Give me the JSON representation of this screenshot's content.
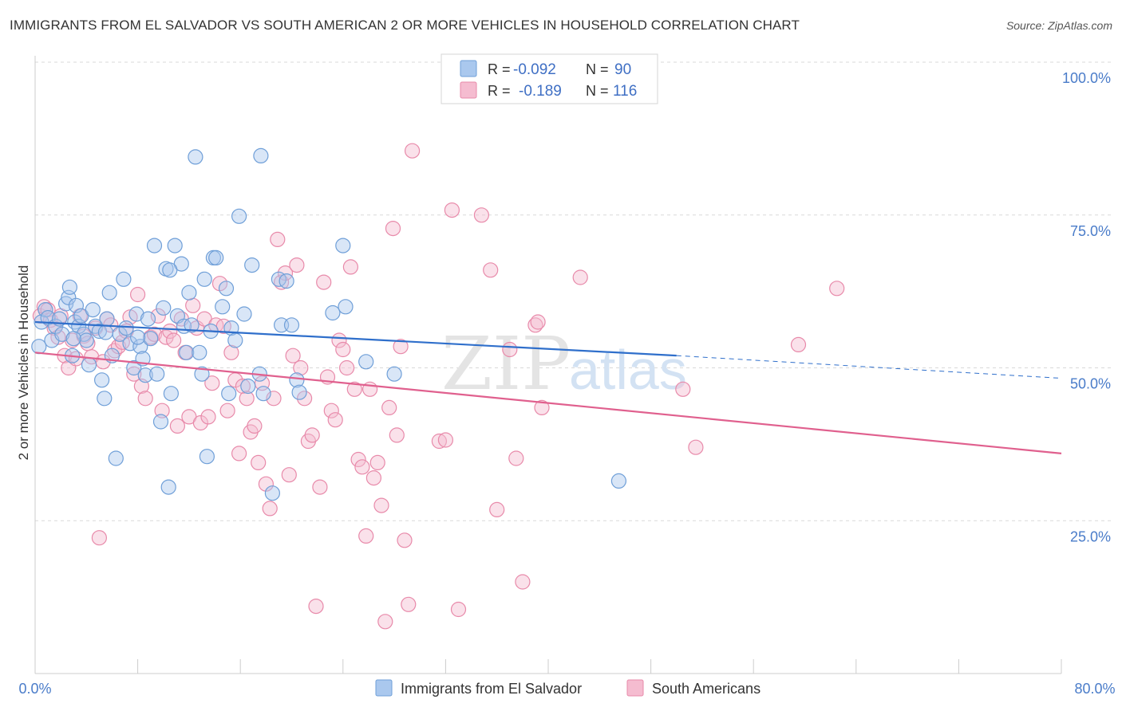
{
  "title": "IMMIGRANTS FROM EL SALVADOR VS SOUTH AMERICAN 2 OR MORE VEHICLES IN HOUSEHOLD CORRELATION CHART",
  "source": "Source: ZipAtlas.com",
  "watermark": {
    "zip": "ZIP",
    "atlas": "atlas"
  },
  "colors": {
    "blue_fill": "#aac8ee",
    "blue_stroke": "#6f9fd8",
    "blue_line": "#2f6fcb",
    "pink_fill": "#f5bcd0",
    "pink_stroke": "#e88aaa",
    "pink_line": "#e0608e",
    "tick_label": "#4a7cc9",
    "grid": "#d9d9d9"
  },
  "legend_top": {
    "rows": [
      {
        "r_label": "R =",
        "r_value": "-0.092",
        "n_label": "N =",
        "n_value": "90"
      },
      {
        "r_label": "R =",
        "r_value": "-0.189",
        "n_label": "N =",
        "n_value": "116"
      }
    ]
  },
  "chart_data": {
    "type": "scatter",
    "title": "IMMIGRANTS FROM EL SALVADOR VS SOUTH AMERICAN 2 OR MORE VEHICLES IN HOUSEHOLD CORRELATION CHART",
    "xlabel": "",
    "ylabel": "2 or more Vehicles in Household",
    "xlim": [
      0,
      80
    ],
    "ylim": [
      0,
      100
    ],
    "x_tick_labels": [
      "0.0%",
      "80.0%"
    ],
    "y_ticks": [
      25,
      50,
      75,
      100
    ],
    "y_tick_labels": [
      "25.0%",
      "50.0%",
      "75.0%",
      "100.0%"
    ],
    "grid": "horizontal dashed",
    "legend_position": "bottom-center",
    "series": [
      {
        "name": "Immigrants from El Salvador",
        "color": "#6f9fd8",
        "r": -0.092,
        "n": 90,
        "trend": {
          "x0": 0,
          "y0": 57.5,
          "x1": 50,
          "y1": 52.0,
          "dash_to_x": 80,
          "dash_to_y": 48.3
        },
        "points": [
          [
            0.3,
            53.5
          ],
          [
            0.5,
            57.5
          ],
          [
            0.8,
            59.5
          ],
          [
            1.0,
            58.2
          ],
          [
            1.3,
            54.5
          ],
          [
            1.6,
            56.8
          ],
          [
            1.9,
            58.0
          ],
          [
            2.1,
            55.5
          ],
          [
            2.4,
            60.5
          ],
          [
            2.6,
            61.5
          ],
          [
            2.7,
            63.2
          ],
          [
            2.9,
            52.0
          ],
          [
            3.1,
            57.5
          ],
          [
            3.2,
            60.2
          ],
          [
            3.4,
            56.8
          ],
          [
            3.6,
            58.5
          ],
          [
            3.8,
            55.5
          ],
          [
            4.0,
            54.5
          ],
          [
            4.2,
            50.5
          ],
          [
            4.5,
            59.5
          ],
          [
            4.7,
            56.8
          ],
          [
            5.0,
            56.0
          ],
          [
            5.2,
            48.0
          ],
          [
            5.4,
            45.0
          ],
          [
            5.6,
            58.0
          ],
          [
            5.8,
            62.3
          ],
          [
            6.0,
            52.0
          ],
          [
            6.3,
            35.2
          ],
          [
            6.6,
            55.5
          ],
          [
            6.9,
            64.5
          ],
          [
            7.1,
            56.5
          ],
          [
            7.4,
            54.0
          ],
          [
            7.7,
            50.0
          ],
          [
            7.9,
            58.8
          ],
          [
            8.2,
            53.5
          ],
          [
            8.4,
            51.5
          ],
          [
            8.6,
            48.8
          ],
          [
            8.8,
            58.0
          ],
          [
            9.0,
            54.8
          ],
          [
            9.3,
            70.0
          ],
          [
            9.5,
            49.0
          ],
          [
            9.8,
            41.2
          ],
          [
            10.0,
            59.8
          ],
          [
            10.2,
            66.2
          ],
          [
            10.4,
            30.5
          ],
          [
            10.6,
            45.8
          ],
          [
            10.9,
            70.0
          ],
          [
            11.1,
            58.5
          ],
          [
            11.4,
            67.0
          ],
          [
            11.6,
            56.8
          ],
          [
            11.8,
            52.5
          ],
          [
            12.0,
            62.3
          ],
          [
            12.2,
            57.0
          ],
          [
            12.5,
            84.5
          ],
          [
            13.0,
            49.0
          ],
          [
            13.2,
            64.5
          ],
          [
            13.4,
            35.5
          ],
          [
            13.7,
            56.0
          ],
          [
            13.9,
            68.0
          ],
          [
            14.1,
            68.0
          ],
          [
            14.6,
            60.0
          ],
          [
            14.9,
            63.0
          ],
          [
            15.1,
            45.8
          ],
          [
            15.3,
            56.5
          ],
          [
            15.6,
            54.5
          ],
          [
            15.9,
            74.8
          ],
          [
            16.3,
            58.8
          ],
          [
            16.6,
            47.0
          ],
          [
            16.9,
            66.8
          ],
          [
            17.5,
            49.0
          ],
          [
            17.8,
            45.8
          ],
          [
            18.5,
            29.5
          ],
          [
            19.0,
            64.5
          ],
          [
            19.2,
            57.0
          ],
          [
            19.6,
            64.2
          ],
          [
            20.0,
            57.0
          ],
          [
            20.4,
            48.0
          ],
          [
            20.6,
            46.0
          ],
          [
            23.2,
            59.0
          ],
          [
            24.0,
            70.0
          ],
          [
            24.2,
            60.0
          ],
          [
            25.8,
            51.0
          ],
          [
            28.0,
            49.0
          ],
          [
            45.5,
            31.5
          ],
          [
            17.6,
            84.7
          ],
          [
            10.5,
            66.0
          ],
          [
            3.0,
            54.8
          ],
          [
            5.5,
            55.8
          ],
          [
            8.0,
            55.0
          ],
          [
            12.8,
            52.5
          ]
        ]
      },
      {
        "name": "South Americans",
        "color": "#e88aaa",
        "r": -0.189,
        "n": 116,
        "trend": {
          "x0": 0,
          "y0": 52.5,
          "x1": 80,
          "y1": 36.0
        },
        "points": [
          [
            0.4,
            58.5
          ],
          [
            0.7,
            60.0
          ],
          [
            1.0,
            59.5
          ],
          [
            1.2,
            57.8
          ],
          [
            1.5,
            56.5
          ],
          [
            1.8,
            55.0
          ],
          [
            2.0,
            58.5
          ],
          [
            2.3,
            52.0
          ],
          [
            2.6,
            50.0
          ],
          [
            2.9,
            54.5
          ],
          [
            3.2,
            51.5
          ],
          [
            3.5,
            58.5
          ],
          [
            3.8,
            55.2
          ],
          [
            4.1,
            54.0
          ],
          [
            4.4,
            51.8
          ],
          [
            4.7,
            56.5
          ],
          [
            5.0,
            22.2
          ],
          [
            5.3,
            51.0
          ],
          [
            5.6,
            58.0
          ],
          [
            5.9,
            57.0
          ],
          [
            6.2,
            52.8
          ],
          [
            6.5,
            53.5
          ],
          [
            6.8,
            54.2
          ],
          [
            7.1,
            56.0
          ],
          [
            7.4,
            58.3
          ],
          [
            7.7,
            49.0
          ],
          [
            8.0,
            62.0
          ],
          [
            8.3,
            47.0
          ],
          [
            8.6,
            45.0
          ],
          [
            9.0,
            55.0
          ],
          [
            9.3,
            55.5
          ],
          [
            9.6,
            58.5
          ],
          [
            9.9,
            43.0
          ],
          [
            10.2,
            55.0
          ],
          [
            10.5,
            56.0
          ],
          [
            10.8,
            54.5
          ],
          [
            11.1,
            40.5
          ],
          [
            11.4,
            58.0
          ],
          [
            11.7,
            52.5
          ],
          [
            12.0,
            42.0
          ],
          [
            12.3,
            60.2
          ],
          [
            12.6,
            56.5
          ],
          [
            12.9,
            41.0
          ],
          [
            13.2,
            58.0
          ],
          [
            13.5,
            42.0
          ],
          [
            13.8,
            47.5
          ],
          [
            14.1,
            57.0
          ],
          [
            14.4,
            63.8
          ],
          [
            14.7,
            56.8
          ],
          [
            15.0,
            43.0
          ],
          [
            15.3,
            52.5
          ],
          [
            15.6,
            48.0
          ],
          [
            15.9,
            36.0
          ],
          [
            16.2,
            47.0
          ],
          [
            16.5,
            45.0
          ],
          [
            16.8,
            39.5
          ],
          [
            17.1,
            40.5
          ],
          [
            17.4,
            34.5
          ],
          [
            17.7,
            47.5
          ],
          [
            18.0,
            31.0
          ],
          [
            18.3,
            27.0
          ],
          [
            18.6,
            45.0
          ],
          [
            18.9,
            71.0
          ],
          [
            19.2,
            64.0
          ],
          [
            19.5,
            65.5
          ],
          [
            19.8,
            32.5
          ],
          [
            20.1,
            52.0
          ],
          [
            20.4,
            66.8
          ],
          [
            20.7,
            50.0
          ],
          [
            21.0,
            45.0
          ],
          [
            21.3,
            38.0
          ],
          [
            21.6,
            39.0
          ],
          [
            21.9,
            11.0
          ],
          [
            22.2,
            30.5
          ],
          [
            22.5,
            64.0
          ],
          [
            22.8,
            48.5
          ],
          [
            23.1,
            43.0
          ],
          [
            23.4,
            41.5
          ],
          [
            23.7,
            54.5
          ],
          [
            24.0,
            53.0
          ],
          [
            24.3,
            50.0
          ],
          [
            24.6,
            66.5
          ],
          [
            24.9,
            46.5
          ],
          [
            25.2,
            35.0
          ],
          [
            25.5,
            33.8
          ],
          [
            25.8,
            22.5
          ],
          [
            26.1,
            46.5
          ],
          [
            26.4,
            32.0
          ],
          [
            26.7,
            34.5
          ],
          [
            27.0,
            27.5
          ],
          [
            27.3,
            8.5
          ],
          [
            27.6,
            43.5
          ],
          [
            27.9,
            72.8
          ],
          [
            28.2,
            39.0
          ],
          [
            28.5,
            53.5
          ],
          [
            28.8,
            21.8
          ],
          [
            29.1,
            11.3
          ],
          [
            29.4,
            85.5
          ],
          [
            31.5,
            38.0
          ],
          [
            32.0,
            38.2
          ],
          [
            32.5,
            75.8
          ],
          [
            33.0,
            10.5
          ],
          [
            34.8,
            75.0
          ],
          [
            35.5,
            66.0
          ],
          [
            36.0,
            26.8
          ],
          [
            37.0,
            53.0
          ],
          [
            37.5,
            35.2
          ],
          [
            38.0,
            15.0
          ],
          [
            39.0,
            57.0
          ],
          [
            39.5,
            43.5
          ],
          [
            42.5,
            64.8
          ],
          [
            50.5,
            46.5
          ],
          [
            51.5,
            37.0
          ],
          [
            59.5,
            53.8
          ],
          [
            62.5,
            63.0
          ],
          [
            39.2,
            57.5
          ]
        ]
      }
    ]
  }
}
